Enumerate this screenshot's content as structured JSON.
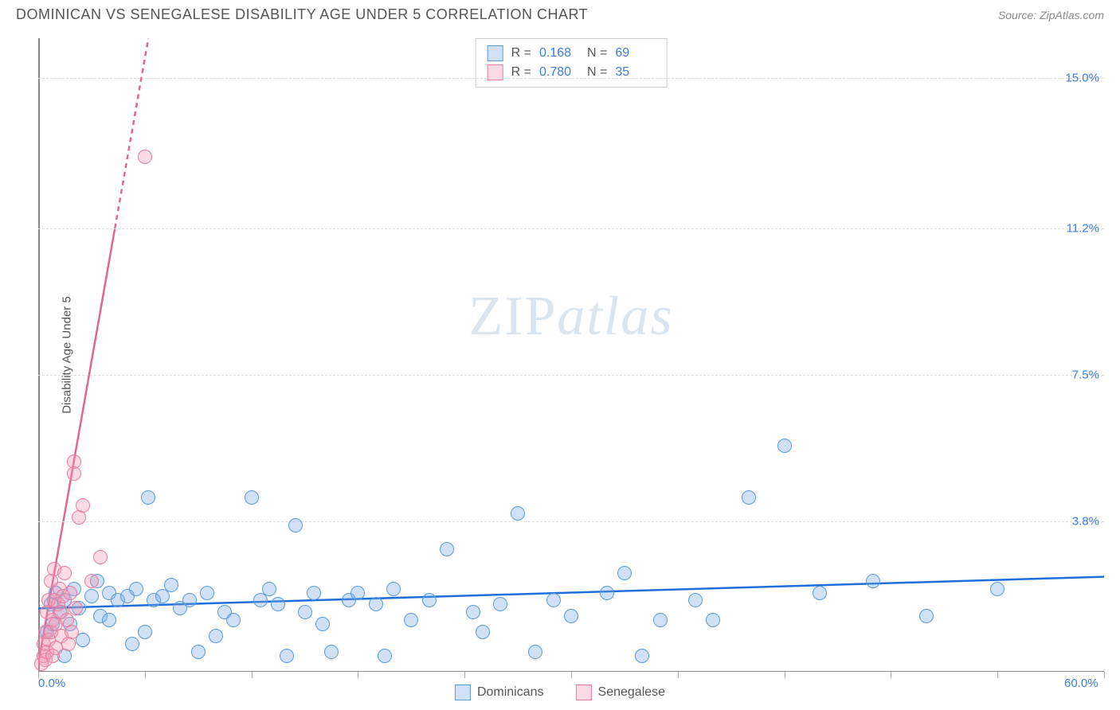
{
  "title": "DOMINICAN VS SENEGALESE DISABILITY AGE UNDER 5 CORRELATION CHART",
  "source": "Source: ZipAtlas.com",
  "y_axis_label": "Disability Age Under 5",
  "watermark": {
    "part1": "ZIP",
    "part2": "atlas"
  },
  "chart": {
    "type": "scatter",
    "xlim": [
      0,
      60
    ],
    "ylim": [
      0,
      16
    ],
    "x_min_label": "0.0%",
    "x_max_label": "60.0%",
    "y_ticks": [
      {
        "v": 3.8,
        "label": "3.8%"
      },
      {
        "v": 7.5,
        "label": "7.5%"
      },
      {
        "v": 11.2,
        "label": "11.2%"
      },
      {
        "v": 15.0,
        "label": "15.0%"
      }
    ],
    "x_tick_positions": [
      0,
      6,
      12,
      18,
      24,
      30,
      36,
      42,
      48,
      54,
      60
    ],
    "background_color": "#ffffff",
    "grid_color": "#dddddd",
    "axis_color": "#888888",
    "point_radius": 9,
    "point_stroke_width": 1.5,
    "series": [
      {
        "name": "Dominicans",
        "fill": "rgba(120,170,230,0.35)",
        "stroke": "#5a9bd8",
        "R": "0.168",
        "N": "69",
        "trend": {
          "x1": 0,
          "y1": 1.6,
          "x2": 60,
          "y2": 2.4,
          "color": "#1e6fd9",
          "width": 2.5,
          "dash": "none"
        },
        "points": [
          [
            0.5,
            1.0
          ],
          [
            0.7,
            1.7
          ],
          [
            0.8,
            1.2
          ],
          [
            1.0,
            2.0
          ],
          [
            1.2,
            1.5
          ],
          [
            1.5,
            0.4
          ],
          [
            1.5,
            1.8
          ],
          [
            1.8,
            1.2
          ],
          [
            2.0,
            2.1
          ],
          [
            2.3,
            1.6
          ],
          [
            2.5,
            0.8
          ],
          [
            3.0,
            1.9
          ],
          [
            3.3,
            2.3
          ],
          [
            3.5,
            1.4
          ],
          [
            4.0,
            1.3
          ],
          [
            4.0,
            2.0
          ],
          [
            4.5,
            1.8
          ],
          [
            5.0,
            1.9
          ],
          [
            5.3,
            0.7
          ],
          [
            5.5,
            2.1
          ],
          [
            6.0,
            1.0
          ],
          [
            6.2,
            4.4
          ],
          [
            6.5,
            1.8
          ],
          [
            7.0,
            1.9
          ],
          [
            7.5,
            2.2
          ],
          [
            8.0,
            1.6
          ],
          [
            8.5,
            1.8
          ],
          [
            9.0,
            0.5
          ],
          [
            9.5,
            2.0
          ],
          [
            10.0,
            0.9
          ],
          [
            10.5,
            1.5
          ],
          [
            11.0,
            1.3
          ],
          [
            12.0,
            4.4
          ],
          [
            12.5,
            1.8
          ],
          [
            13.0,
            2.1
          ],
          [
            13.5,
            1.7
          ],
          [
            14.0,
            0.4
          ],
          [
            14.5,
            3.7
          ],
          [
            15.0,
            1.5
          ],
          [
            15.5,
            2.0
          ],
          [
            16.0,
            1.2
          ],
          [
            16.5,
            0.5
          ],
          [
            17.5,
            1.8
          ],
          [
            18.0,
            2.0
          ],
          [
            19.0,
            1.7
          ],
          [
            19.5,
            0.4
          ],
          [
            20.0,
            2.1
          ],
          [
            21.0,
            1.3
          ],
          [
            22.0,
            1.8
          ],
          [
            23.0,
            3.1
          ],
          [
            24.5,
            1.5
          ],
          [
            25.0,
            1.0
          ],
          [
            26.0,
            1.7
          ],
          [
            27.0,
            4.0
          ],
          [
            28.0,
            0.5
          ],
          [
            29.0,
            1.8
          ],
          [
            30.0,
            1.4
          ],
          [
            32.0,
            2.0
          ],
          [
            33.0,
            2.5
          ],
          [
            34.0,
            0.4
          ],
          [
            35.0,
            1.3
          ],
          [
            37.0,
            1.8
          ],
          [
            38.0,
            1.3
          ],
          [
            40.0,
            4.4
          ],
          [
            42.0,
            5.7
          ],
          [
            44.0,
            2.0
          ],
          [
            47.0,
            2.3
          ],
          [
            50.0,
            1.4
          ],
          [
            54.0,
            2.1
          ]
        ]
      },
      {
        "name": "Senegalese",
        "fill": "rgba(240,150,175,0.35)",
        "stroke": "#e87ca0",
        "R": "0.780",
        "N": "35",
        "trend": {
          "x1": 0,
          "y1": 0.2,
          "x2": 6.2,
          "y2": 16,
          "color": "#e26593",
          "width": 2.5,
          "dash": "6 5",
          "dash_break_y": 11.2
        },
        "points": [
          [
            0.2,
            0.2
          ],
          [
            0.3,
            0.4
          ],
          [
            0.3,
            0.7
          ],
          [
            0.4,
            0.3
          ],
          [
            0.4,
            1.0
          ],
          [
            0.5,
            0.5
          ],
          [
            0.5,
            1.5
          ],
          [
            0.6,
            0.8
          ],
          [
            0.6,
            1.8
          ],
          [
            0.7,
            1.0
          ],
          [
            0.7,
            2.3
          ],
          [
            0.8,
            1.3
          ],
          [
            0.8,
            0.4
          ],
          [
            0.9,
            1.8
          ],
          [
            0.9,
            2.6
          ],
          [
            1.0,
            1.2
          ],
          [
            1.0,
            0.6
          ],
          [
            1.1,
            1.7
          ],
          [
            1.2,
            2.1
          ],
          [
            1.3,
            0.9
          ],
          [
            1.3,
            1.5
          ],
          [
            1.4,
            1.9
          ],
          [
            1.5,
            2.5
          ],
          [
            1.6,
            1.3
          ],
          [
            1.7,
            0.7
          ],
          [
            1.8,
            2.0
          ],
          [
            1.9,
            1.0
          ],
          [
            2.0,
            5.3
          ],
          [
            2.0,
            5.0
          ],
          [
            2.1,
            1.6
          ],
          [
            2.3,
            3.9
          ],
          [
            2.5,
            4.2
          ],
          [
            3.0,
            2.3
          ],
          [
            3.5,
            2.9
          ],
          [
            6.0,
            13.0
          ]
        ]
      }
    ]
  },
  "stats_legend_labels": {
    "R": "R  =",
    "N": "N  ="
  },
  "bottom_legend": [
    "Dominicans",
    "Senegalese"
  ]
}
